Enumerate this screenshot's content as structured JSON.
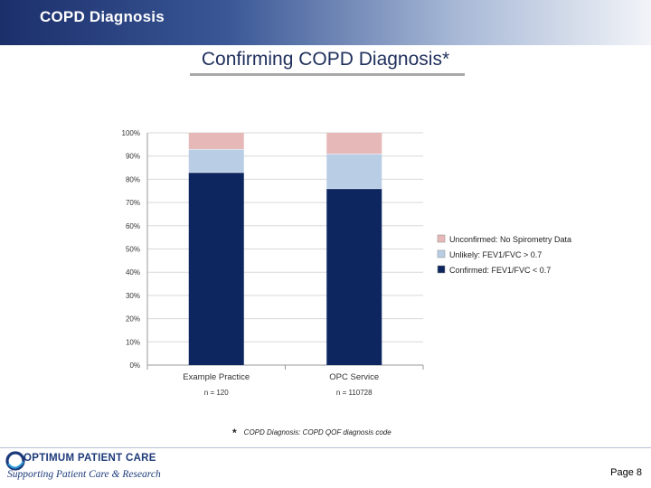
{
  "header": {
    "title": "COPD Diagnosis"
  },
  "slide": {
    "title": "Confirming COPD Diagnosis*"
  },
  "chart_data": {
    "type": "bar",
    "stacked": true,
    "categories": [
      "Example Practice",
      "OPC Service"
    ],
    "n_labels": [
      "n = 120",
      "n = 110728"
    ],
    "series": [
      {
        "name": "Confirmed: FEV1/FVC < 0.7",
        "values": [
          83,
          76
        ],
        "color": "#0d2660"
      },
      {
        "name": "Unlikely: FEV1/FVC > 0.7",
        "values": [
          10,
          15
        ],
        "color": "#b9cde5"
      },
      {
        "name": "Unconfirmed: No Spirometry Data",
        "values": [
          7,
          9
        ],
        "color": "#e6b9b8"
      }
    ],
    "y_ticks": [
      "0%",
      "10%",
      "20%",
      "30%",
      "40%",
      "50%",
      "60%",
      "70%",
      "80%",
      "90%",
      "100%"
    ],
    "ylim": [
      0,
      100
    ],
    "grid": true,
    "legend": "right"
  },
  "footnote": {
    "star": "*",
    "text": "COPD Diagnosis:  COPD QOF diagnosis code"
  },
  "footer": {
    "logo_name": "OPTIMUM PATIENT CARE",
    "logo_tagline": "Supporting Patient Care & Research",
    "page": "Page 8"
  }
}
